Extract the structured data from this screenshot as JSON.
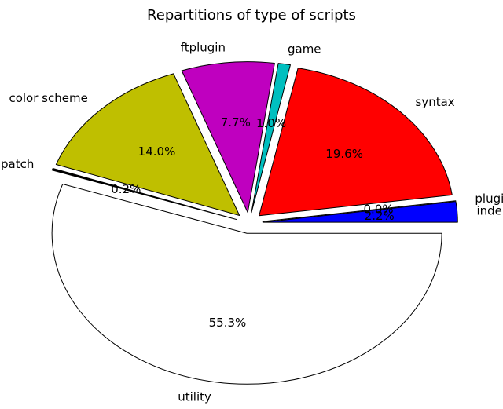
{
  "chart_data": {
    "type": "pie",
    "title": "Repartitions of type of scripts",
    "slices": [
      {
        "label": "indent",
        "value": 2.2,
        "pct_label": "2.2%",
        "color": "#0000ff"
      },
      {
        "label": "plugin",
        "value": 0.0,
        "pct_label": "0.0%",
        "color": "#00bf00"
      },
      {
        "label": "syntax",
        "value": 19.6,
        "pct_label": "19.6%",
        "color": "#ff0000"
      },
      {
        "label": "game",
        "value": 1.0,
        "pct_label": "1.0%",
        "color": "#00bfbf"
      },
      {
        "label": "ftplugin",
        "value": 7.7,
        "pct_label": "7.7%",
        "color": "#bf00bf"
      },
      {
        "label": "color scheme",
        "value": 14.0,
        "pct_label": "14.0%",
        "color": "#bfbf00"
      },
      {
        "label": "patch",
        "value": 0.2,
        "pct_label": "0.2%",
        "color": "#000000"
      },
      {
        "label": "utility",
        "value": 55.3,
        "pct_label": "55.3%",
        "color": "#ffffff"
      }
    ],
    "start_angle": 0,
    "direction": "counterclockwise",
    "exploded": true
  }
}
